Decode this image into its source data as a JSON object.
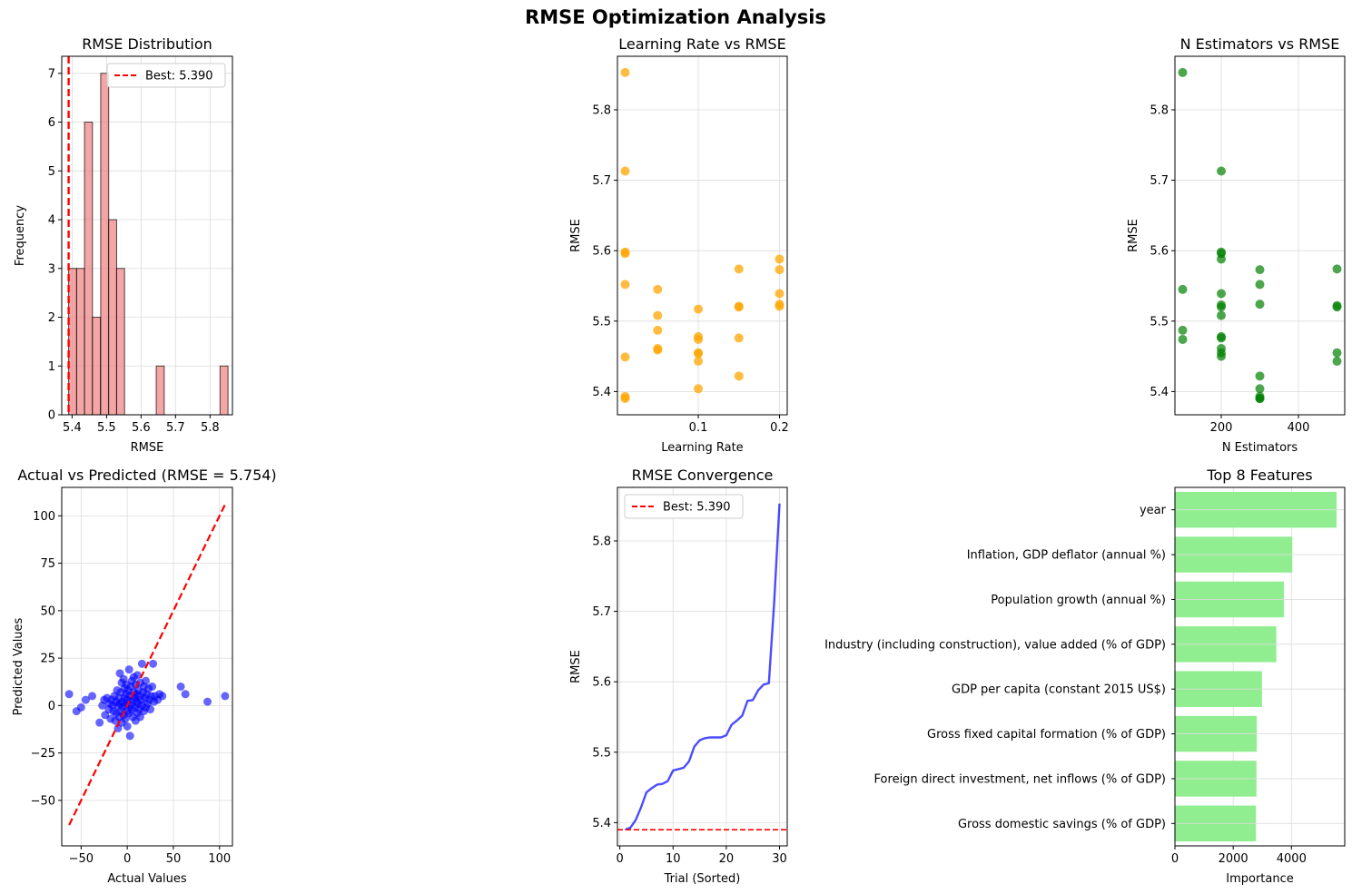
{
  "suptitle": "RMSE Optimization Analysis",
  "colors": {
    "hist": "#f08080",
    "lr_scatter": "#FFA500",
    "ne_scatter": "#008000",
    "pred_scatter": "#0000FF",
    "identity_line": "#FF0000",
    "convergence": "#0000FF",
    "best_line": "#FF0000",
    "features": "#90EE90"
  },
  "chart_data": [
    {
      "type": "bar",
      "title": "RMSE Distribution",
      "xlabel": "RMSE",
      "ylabel": "Frequency",
      "xlim": [
        5.37,
        5.865
      ],
      "ylim": [
        0,
        7.35
      ],
      "xticks": [
        5.4,
        5.5,
        5.6,
        5.7,
        5.8
      ],
      "yticks": [
        0,
        1,
        2,
        3,
        4,
        5,
        6,
        7
      ],
      "bin_width": 0.0231,
      "bins": [
        {
          "x0": 5.39,
          "count": 3
        },
        {
          "x0": 5.413,
          "count": 3
        },
        {
          "x0": 5.436,
          "count": 6
        },
        {
          "x0": 5.459,
          "count": 2
        },
        {
          "x0": 5.483,
          "count": 7
        },
        {
          "x0": 5.506,
          "count": 4
        },
        {
          "x0": 5.529,
          "count": 3
        },
        {
          "x0": 5.552,
          "count": 0
        },
        {
          "x0": 5.575,
          "count": 0
        },
        {
          "x0": 5.598,
          "count": 0
        },
        {
          "x0": 5.621,
          "count": 0
        },
        {
          "x0": 5.644,
          "count": 1
        },
        {
          "x0": 5.667,
          "count": 0
        },
        {
          "x0": 5.69,
          "count": 0
        },
        {
          "x0": 5.714,
          "count": 0
        },
        {
          "x0": 5.737,
          "count": 0
        },
        {
          "x0": 5.76,
          "count": 0
        },
        {
          "x0": 5.783,
          "count": 0
        },
        {
          "x0": 5.806,
          "count": 0
        },
        {
          "x0": 5.829,
          "count": 1
        }
      ],
      "best_line": 5.39,
      "legend": {
        "label": "Best: 5.390",
        "position": "top-right"
      },
      "grid": true
    },
    {
      "type": "scatter",
      "title": "Learning Rate vs RMSE",
      "xlabel": "Learning Rate",
      "ylabel": "RMSE",
      "xlim": [
        0.0005,
        0.2095
      ],
      "ylim": [
        5.367,
        5.876
      ],
      "xticks": [
        0.1,
        0.2
      ],
      "yticks": [
        5.4,
        5.5,
        5.6,
        5.7,
        5.8
      ],
      "x": [
        0.01,
        0.01,
        0.01,
        0.01,
        0.01,
        0.01,
        0.01,
        0.01,
        0.05,
        0.05,
        0.05,
        0.05,
        0.05,
        0.1,
        0.1,
        0.1,
        0.1,
        0.1,
        0.1,
        0.1,
        0.15,
        0.15,
        0.15,
        0.15,
        0.15,
        0.2,
        0.2,
        0.2,
        0.2,
        0.2
      ],
      "y": [
        5.853,
        5.713,
        5.598,
        5.596,
        5.552,
        5.449,
        5.393,
        5.39,
        5.545,
        5.508,
        5.487,
        5.461,
        5.459,
        5.517,
        5.478,
        5.474,
        5.455,
        5.454,
        5.443,
        5.404,
        5.574,
        5.521,
        5.52,
        5.476,
        5.422,
        5.588,
        5.573,
        5.539,
        5.524,
        5.521
      ],
      "grid": true
    },
    {
      "type": "scatter",
      "title": "N Estimators vs RMSE",
      "xlabel": "N Estimators",
      "ylabel": "RMSE",
      "xlim": [
        80,
        520
      ],
      "ylim": [
        5.367,
        5.876
      ],
      "xticks": [
        200,
        400
      ],
      "yticks": [
        5.4,
        5.5,
        5.6,
        5.7,
        5.8
      ],
      "x": [
        100,
        100,
        100,
        100,
        200,
        200,
        200,
        200,
        200,
        200,
        200,
        200,
        200,
        200,
        200,
        200,
        200,
        300,
        300,
        300,
        300,
        300,
        300,
        300,
        300,
        500,
        500,
        500,
        500,
        500
      ],
      "y": [
        5.853,
        5.545,
        5.487,
        5.474,
        5.713,
        5.598,
        5.596,
        5.588,
        5.539,
        5.523,
        5.52,
        5.508,
        5.478,
        5.476,
        5.461,
        5.455,
        5.45,
        5.573,
        5.552,
        5.524,
        5.422,
        5.404,
        5.393,
        5.39,
        5.39,
        5.574,
        5.522,
        5.52,
        5.455,
        5.443
      ],
      "grid": true
    },
    {
      "type": "scatter",
      "title": "Actual vs Predicted (RMSE = 5.754)",
      "xlabel": "Actual Values",
      "ylabel": "Predicted Values",
      "xlim": [
        -71,
        114
      ],
      "ylim": [
        -74,
        115
      ],
      "xticks": [
        -50,
        0,
        50,
        100
      ],
      "yticks": [
        -50,
        -25,
        0,
        25,
        50,
        75,
        100
      ],
      "identity_line": [
        -63,
        106
      ],
      "points": [
        [
          -63,
          6
        ],
        [
          -55,
          -3
        ],
        [
          -50,
          -1
        ],
        [
          -45,
          3
        ],
        [
          -38,
          5
        ],
        [
          -30,
          -9
        ],
        [
          -27,
          0
        ],
        [
          -25,
          3
        ],
        [
          -24,
          -5
        ],
        [
          -22,
          4
        ],
        [
          -20,
          -2
        ],
        [
          -19,
          1
        ],
        [
          -18,
          -7
        ],
        [
          -17,
          3
        ],
        [
          -16,
          0
        ],
        [
          -15,
          -3
        ],
        [
          -14,
          5
        ],
        [
          -13,
          -8
        ],
        [
          -12,
          2
        ],
        [
          -12,
          -4
        ],
        [
          -11,
          8
        ],
        [
          -10,
          0
        ],
        [
          -10,
          -12
        ],
        [
          -9,
          4
        ],
        [
          -9,
          -6
        ],
        [
          -8,
          17
        ],
        [
          -8,
          1
        ],
        [
          -7,
          -3
        ],
        [
          -7,
          7
        ],
        [
          -6,
          -9
        ],
        [
          -6,
          12
        ],
        [
          -5,
          2
        ],
        [
          -5,
          -1
        ],
        [
          -4,
          14
        ],
        [
          -4,
          -5
        ],
        [
          -3,
          4
        ],
        [
          -3,
          9
        ],
        [
          -2,
          -7
        ],
        [
          -2,
          0
        ],
        [
          -1,
          6
        ],
        [
          -1,
          11
        ],
        [
          0,
          -3
        ],
        [
          0,
          3
        ],
        [
          0,
          -11
        ],
        [
          1,
          8
        ],
        [
          1,
          1
        ],
        [
          2,
          -4
        ],
        [
          2,
          19
        ],
        [
          3,
          5
        ],
        [
          3,
          -16
        ],
        [
          4,
          0
        ],
        [
          4,
          10
        ],
        [
          5,
          -2
        ],
        [
          5,
          13
        ],
        [
          6,
          3
        ],
        [
          6,
          -6
        ],
        [
          7,
          7
        ],
        [
          7,
          15
        ],
        [
          8,
          -1
        ],
        [
          8,
          4
        ],
        [
          9,
          11
        ],
        [
          9,
          -8
        ],
        [
          10,
          2
        ],
        [
          10,
          6
        ],
        [
          11,
          -4
        ],
        [
          11,
          16
        ],
        [
          12,
          1
        ],
        [
          12,
          8
        ],
        [
          13,
          -2
        ],
        [
          13,
          5
        ],
        [
          14,
          12
        ],
        [
          14,
          -6
        ],
        [
          15,
          3
        ],
        [
          16,
          22
        ],
        [
          16,
          0
        ],
        [
          17,
          7
        ],
        [
          18,
          -3
        ],
        [
          18,
          10
        ],
        [
          19,
          4
        ],
        [
          20,
          13
        ],
        [
          20,
          -1
        ],
        [
          21,
          6
        ],
        [
          22,
          1
        ],
        [
          23,
          9
        ],
        [
          24,
          3
        ],
        [
          25,
          -2
        ],
        [
          26,
          5
        ],
        [
          27,
          10
        ],
        [
          28,
          22
        ],
        [
          29,
          2
        ],
        [
          30,
          5
        ],
        [
          33,
          3
        ],
        [
          35,
          6
        ],
        [
          38,
          5
        ],
        [
          58,
          10
        ],
        [
          63,
          6
        ],
        [
          87,
          2
        ],
        [
          106,
          5
        ]
      ],
      "grid": true
    },
    {
      "type": "line",
      "title": "RMSE Convergence",
      "xlabel": "Trial (Sorted)",
      "ylabel": "RMSE",
      "xlim": [
        -0.45,
        31.45
      ],
      "ylim": [
        5.367,
        5.876
      ],
      "xticks": [
        0,
        10,
        20,
        30
      ],
      "yticks": [
        5.4,
        5.5,
        5.6,
        5.7,
        5.8
      ],
      "x": [
        1,
        2,
        3,
        4,
        5,
        6,
        7,
        8,
        9,
        10,
        11,
        12,
        13,
        14,
        15,
        16,
        17,
        18,
        19,
        20,
        21,
        22,
        23,
        24,
        25,
        26,
        27,
        28,
        29,
        30
      ],
      "y": [
        5.39,
        5.393,
        5.404,
        5.422,
        5.443,
        5.449,
        5.454,
        5.455,
        5.459,
        5.474,
        5.476,
        5.478,
        5.487,
        5.508,
        5.517,
        5.52,
        5.521,
        5.521,
        5.521,
        5.524,
        5.539,
        5.545,
        5.552,
        5.573,
        5.574,
        5.588,
        5.596,
        5.598,
        5.713,
        5.853
      ],
      "best_line": 5.39,
      "legend": {
        "label": "Best: 5.390",
        "position": "top-left"
      },
      "grid": true
    },
    {
      "type": "bar",
      "orientation": "horizontal",
      "title": "Top 8 Features",
      "xlabel": "Importance",
      "xlim": [
        0,
        5830
      ],
      "xticks": [
        0,
        2000,
        4000
      ],
      "categories": [
        "year",
        "Inflation, GDP deflator (annual %)",
        "Population growth (annual %)",
        "Industry (including construction), value added (% of GDP)",
        "GDP per capita (constant 2015 US$)",
        "Gross fixed capital formation (% of GDP)",
        "Foreign direct investment, net inflows (% of GDP)",
        "Gross domestic savings (% of GDP)"
      ],
      "values": [
        5550,
        4030,
        3740,
        3480,
        2990,
        2810,
        2800,
        2780
      ],
      "grid": true
    }
  ]
}
